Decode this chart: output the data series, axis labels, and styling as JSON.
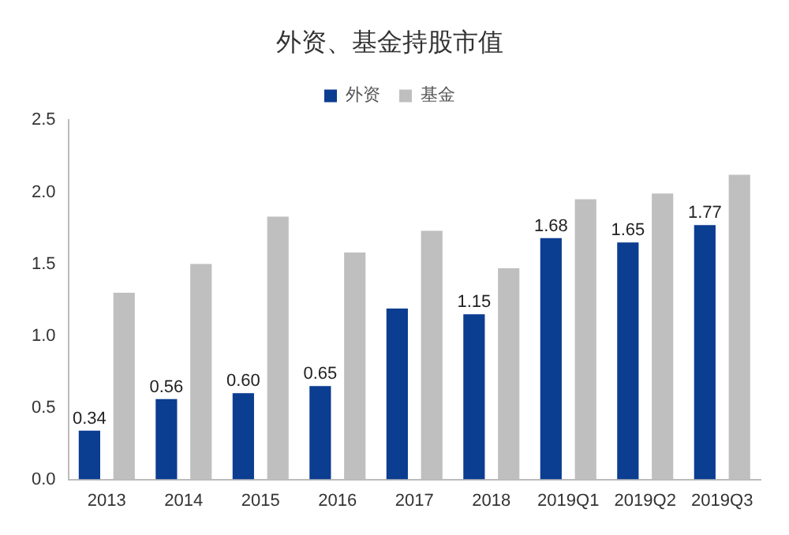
{
  "chart_data": {
    "type": "bar",
    "title": "外资、基金持股市值",
    "categories": [
      "2013",
      "2014",
      "2015",
      "2016",
      "2017",
      "2018",
      "2019Q1",
      "2019Q2",
      "2019Q3"
    ],
    "series": [
      {
        "name": "外资",
        "color": "#0b3d91",
        "values": [
          0.34,
          0.56,
          0.6,
          0.65,
          1.19,
          1.15,
          1.68,
          1.65,
          1.77
        ],
        "value_labels": [
          "0.34",
          "0.56",
          "0.60",
          "0.65",
          null,
          "1.15",
          "1.68",
          "1.65",
          "1.77"
        ]
      },
      {
        "name": "基金",
        "color": "#bfbfbf",
        "values": [
          1.3,
          1.5,
          1.83,
          1.58,
          1.73,
          1.47,
          1.95,
          1.99,
          2.12
        ]
      }
    ],
    "ylim": [
      0,
      2.5
    ],
    "yticks": [
      {
        "value": 0,
        "label": "0.0"
      },
      0.5,
      {
        "value": 1,
        "label": "1.0"
      },
      1.5,
      {
        "value": 2,
        "label": "2.0"
      },
      2.5
    ],
    "grid": false,
    "legend": "top"
  }
}
